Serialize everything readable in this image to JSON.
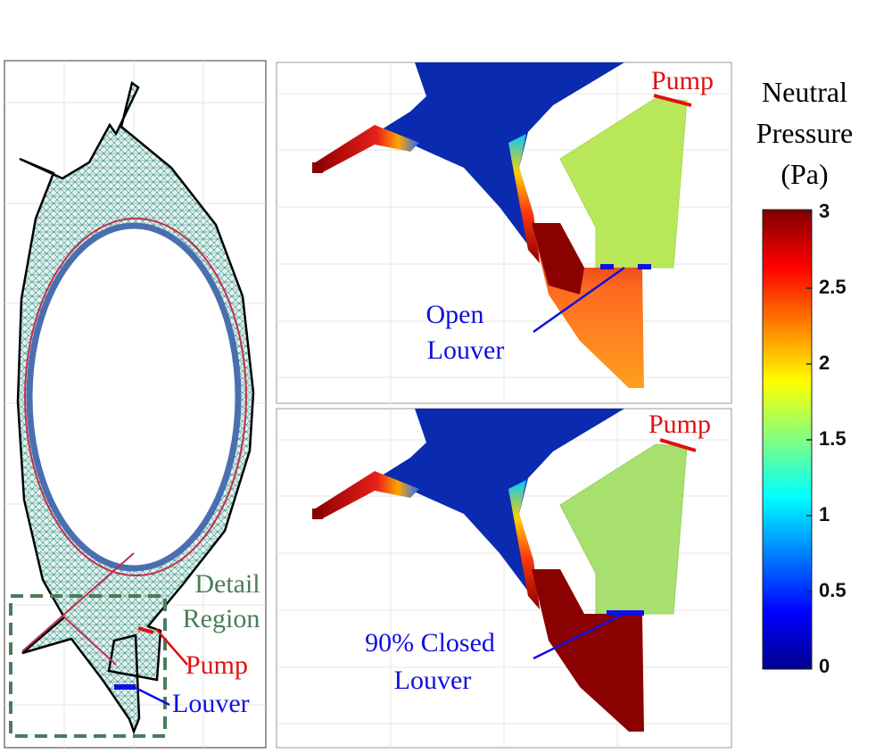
{
  "left_panel": {
    "detail_label": [
      "Detail",
      "Region"
    ],
    "pump_label": "Pump",
    "louver_label": "Louver"
  },
  "top_panel": {
    "pump_label": "Pump",
    "louver_label": [
      "Open",
      "Louver"
    ]
  },
  "bottom_panel": {
    "pump_label": "Pump",
    "louver_label": [
      "90% Closed",
      "Louver"
    ]
  },
  "colorbar": {
    "title": [
      "Neutral",
      "Pressure",
      "(Pa)"
    ],
    "ticks": [
      0,
      0.5,
      1,
      1.5,
      2,
      2.5,
      3
    ],
    "lim": [
      0,
      3
    ]
  }
}
